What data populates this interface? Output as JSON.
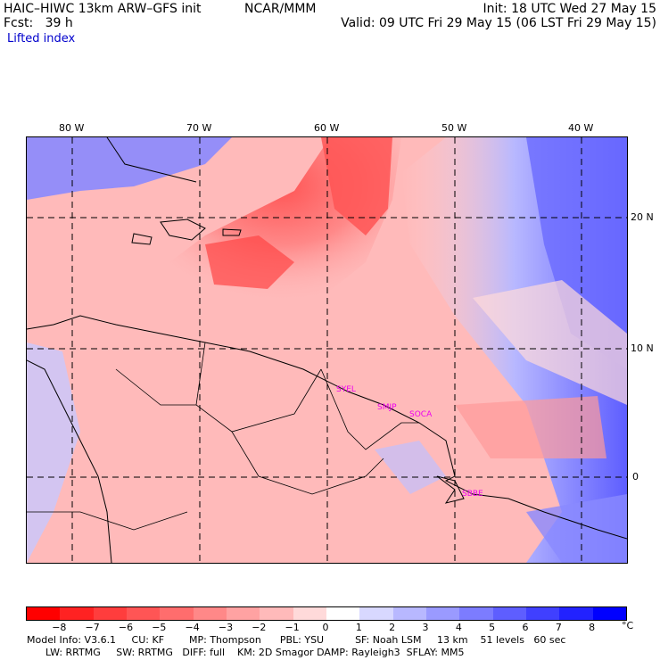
{
  "header": {
    "model_title": "HAIC–HIWC 13km ARW–GFS init",
    "org": "NCAR/MMM",
    "init": "Init: 18 UTC Wed 27 May 15",
    "fcst": "Fcst:   39 h",
    "valid": "Valid: 09 UTC Fri 29 May 15 (06 LST Fri 29 May 15)",
    "field": "Lifted index"
  },
  "map": {
    "lon_labels": [
      "80 W",
      "70 W",
      "60 W",
      "50 W",
      "40 W"
    ],
    "lat_labels": [
      "20 N",
      "10 N",
      "0"
    ],
    "stations": [
      "SYEL",
      "SMJP",
      "SOCA",
      "SBBE"
    ]
  },
  "colorbar": {
    "tick_labels": [
      "−8",
      "−7",
      "−6",
      "−5",
      "−4",
      "−3",
      "−2",
      "−1",
      "0",
      "1",
      "2",
      "3",
      "4",
      "5",
      "6",
      "7",
      "8"
    ],
    "unit": "°C",
    "colors": [
      "#ff0000",
      "#ff2222",
      "#ff3d3d",
      "#ff5555",
      "#ff6d6d",
      "#ff8888",
      "#ffa2a2",
      "#ffbaba",
      "#ffdada",
      "#ffffff",
      "#d8d8ff",
      "#b8b8ff",
      "#9a9aff",
      "#7c7cff",
      "#5e5eff",
      "#4040ff",
      "#2222ff",
      "#0000ff"
    ]
  },
  "footer": {
    "line1": "Model Info: V3.6.1     CU: KF        MP: Thompson      PBL: YSU          SF: Noah LSM     13 km    51 levels   60 sec",
    "line2": "      LW: RRTMG     SW: RRTMG   DIFF: full    KM: 2D Smagor DAMP: Rayleigh3  SFLAY: MM5"
  }
}
